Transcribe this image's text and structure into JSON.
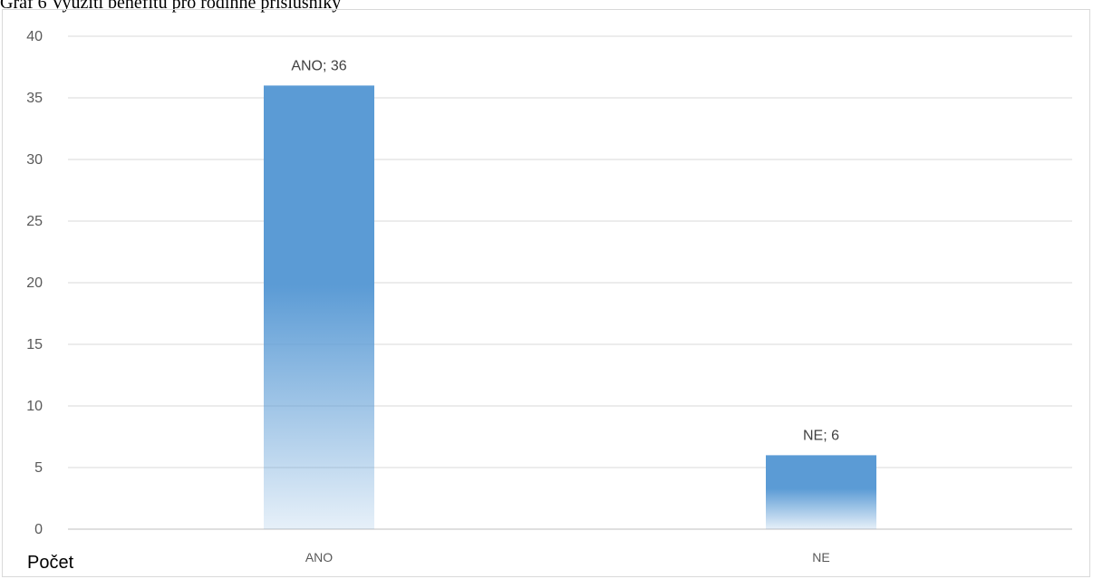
{
  "chart_data": {
    "type": "bar",
    "title": "Graf 6 Využití benefitu pro rodinné příslušníky",
    "categories": [
      "ANO",
      "NE"
    ],
    "values": [
      36,
      6
    ],
    "data_labels": [
      "ANO; 36",
      "NE; 6"
    ],
    "xlabel": "",
    "ylabel": "Počet",
    "ylim": [
      0,
      40
    ],
    "yticks": [
      0,
      5,
      10,
      15,
      20,
      25,
      30,
      35,
      40
    ],
    "grid": true,
    "legend": "none",
    "bar_color": "#5b9bd5"
  }
}
